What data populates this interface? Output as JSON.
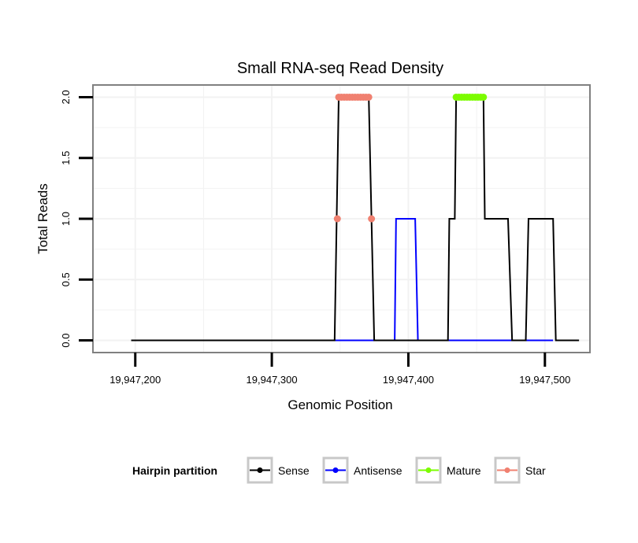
{
  "chart_data": {
    "type": "line",
    "title": "Small RNA-seq Read Density",
    "xlabel": "Genomic Position",
    "ylabel": "Total Reads",
    "xlim": [
      19947169,
      19947533
    ],
    "ylim": [
      -0.1,
      2.1
    ],
    "x_ticks": [
      19947200,
      19947300,
      19947400,
      19947500
    ],
    "x_tick_labels": [
      "19,947,200",
      "19,947,300",
      "19,947,400",
      "19,947,500"
    ],
    "y_ticks": [
      0,
      0.5,
      1,
      1.5,
      2
    ],
    "y_tick_labels": [
      "0.0",
      "0.5",
      "1.0",
      "1.5",
      "2.0"
    ],
    "grid": true,
    "legend": {
      "title": "Hairpin partition",
      "position": "bottom",
      "entries": [
        "Sense",
        "Antisense",
        "Mature",
        "Star"
      ]
    },
    "series": [
      {
        "name": "Sense",
        "color": "#000000",
        "kind": "line",
        "x": [
          19947197,
          19947346,
          19947349,
          19947371,
          19947373,
          19947375,
          19947429,
          19947430,
          19947434,
          19947435,
          19947455,
          19947456,
          19947473,
          19947476,
          19947486,
          19947488,
          19947506,
          19947508,
          19947525
        ],
        "y": [
          0,
          0,
          2,
          2,
          1,
          0,
          0,
          1,
          1,
          2,
          2,
          1,
          1,
          0,
          0,
          1,
          1,
          0,
          0
        ]
      },
      {
        "name": "Antisense",
        "color": "#0000ff",
        "kind": "line",
        "x": [
          19947346,
          19947390,
          19947391,
          19947405,
          19947407,
          19947506
        ],
        "y": [
          0,
          0,
          1,
          1,
          0,
          0
        ]
      },
      {
        "name": "Mature",
        "color": "#7cfc00",
        "kind": "points",
        "x": [
          19947435,
          19947437,
          19947439,
          19947441,
          19947443,
          19947445,
          19947447,
          19947449,
          19947451,
          19947453,
          19947455
        ],
        "y": [
          2,
          2,
          2,
          2,
          2,
          2,
          2,
          2,
          2,
          2,
          2
        ]
      },
      {
        "name": "Star",
        "color": "#f08070",
        "kind": "points",
        "x": [
          19947348,
          19947349,
          19947351,
          19947353,
          19947355,
          19947357,
          19947359,
          19947361,
          19947363,
          19947365,
          19947367,
          19947369,
          19947371,
          19947373
        ],
        "y": [
          1,
          2,
          2,
          2,
          2,
          2,
          2,
          2,
          2,
          2,
          2,
          2,
          2,
          1
        ]
      }
    ]
  }
}
